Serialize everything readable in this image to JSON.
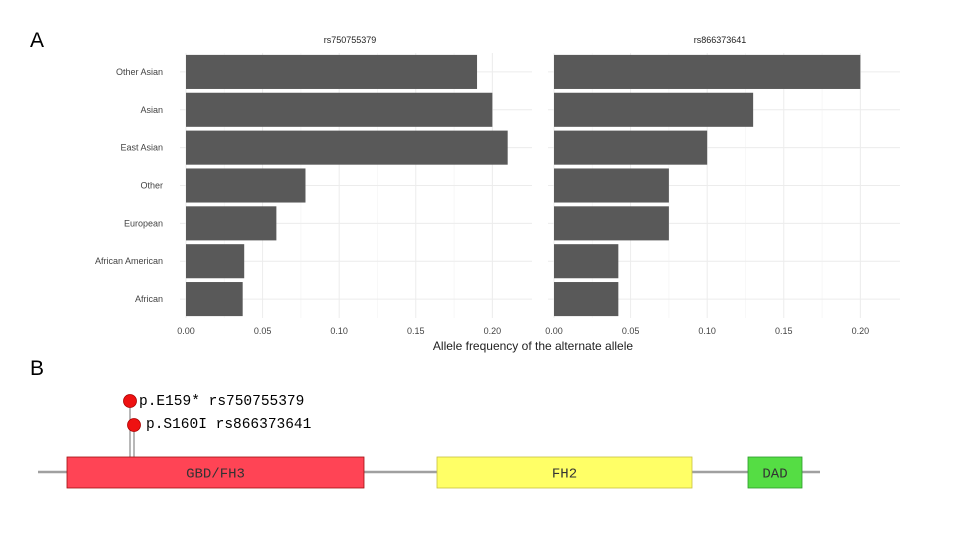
{
  "panels": {
    "a_label": "A",
    "b_label": "B"
  },
  "chart_data": {
    "type": "bar",
    "orientation": "horizontal",
    "categories": [
      "Other Asian",
      "Asian",
      "East Asian",
      "Other",
      "European",
      "African American",
      "African"
    ],
    "xlabel": "Allele frequency of the alternate allele",
    "ylabel": "",
    "grid": true,
    "bar_color": "#595959",
    "facets": [
      {
        "title": "rs750755379",
        "values": [
          0.19,
          0.2,
          0.21,
          0.078,
          0.059,
          0.038,
          0.037
        ],
        "xlim": [
          0,
          0.22
        ],
        "ticks": [
          0.0,
          0.05,
          0.1,
          0.15,
          0.2
        ],
        "tick_labels": [
          "0.00",
          "0.05",
          "0.10",
          "0.15",
          "0.20"
        ]
      },
      {
        "title": "rs866373641",
        "values": [
          0.2,
          0.13,
          0.1,
          0.075,
          0.075,
          0.042,
          0.042
        ],
        "xlim": [
          0,
          0.22
        ],
        "ticks": [
          0.0,
          0.05,
          0.1,
          0.15,
          0.2
        ],
        "tick_labels": [
          "0.00",
          "0.05",
          "0.10",
          "0.15",
          "0.20"
        ]
      }
    ]
  },
  "protein": {
    "domains": [
      {
        "name": "GBD/FH3",
        "color": "#ff4455"
      },
      {
        "name": "FH2",
        "color": "#ffff66"
      },
      {
        "name": "DAD",
        "color": "#55dd44"
      }
    ],
    "variants": [
      {
        "label": "p.E159* rs750755379",
        "color": "#ee1111"
      },
      {
        "label": "p.S160I rs866373641",
        "color": "#ee1111"
      }
    ]
  }
}
